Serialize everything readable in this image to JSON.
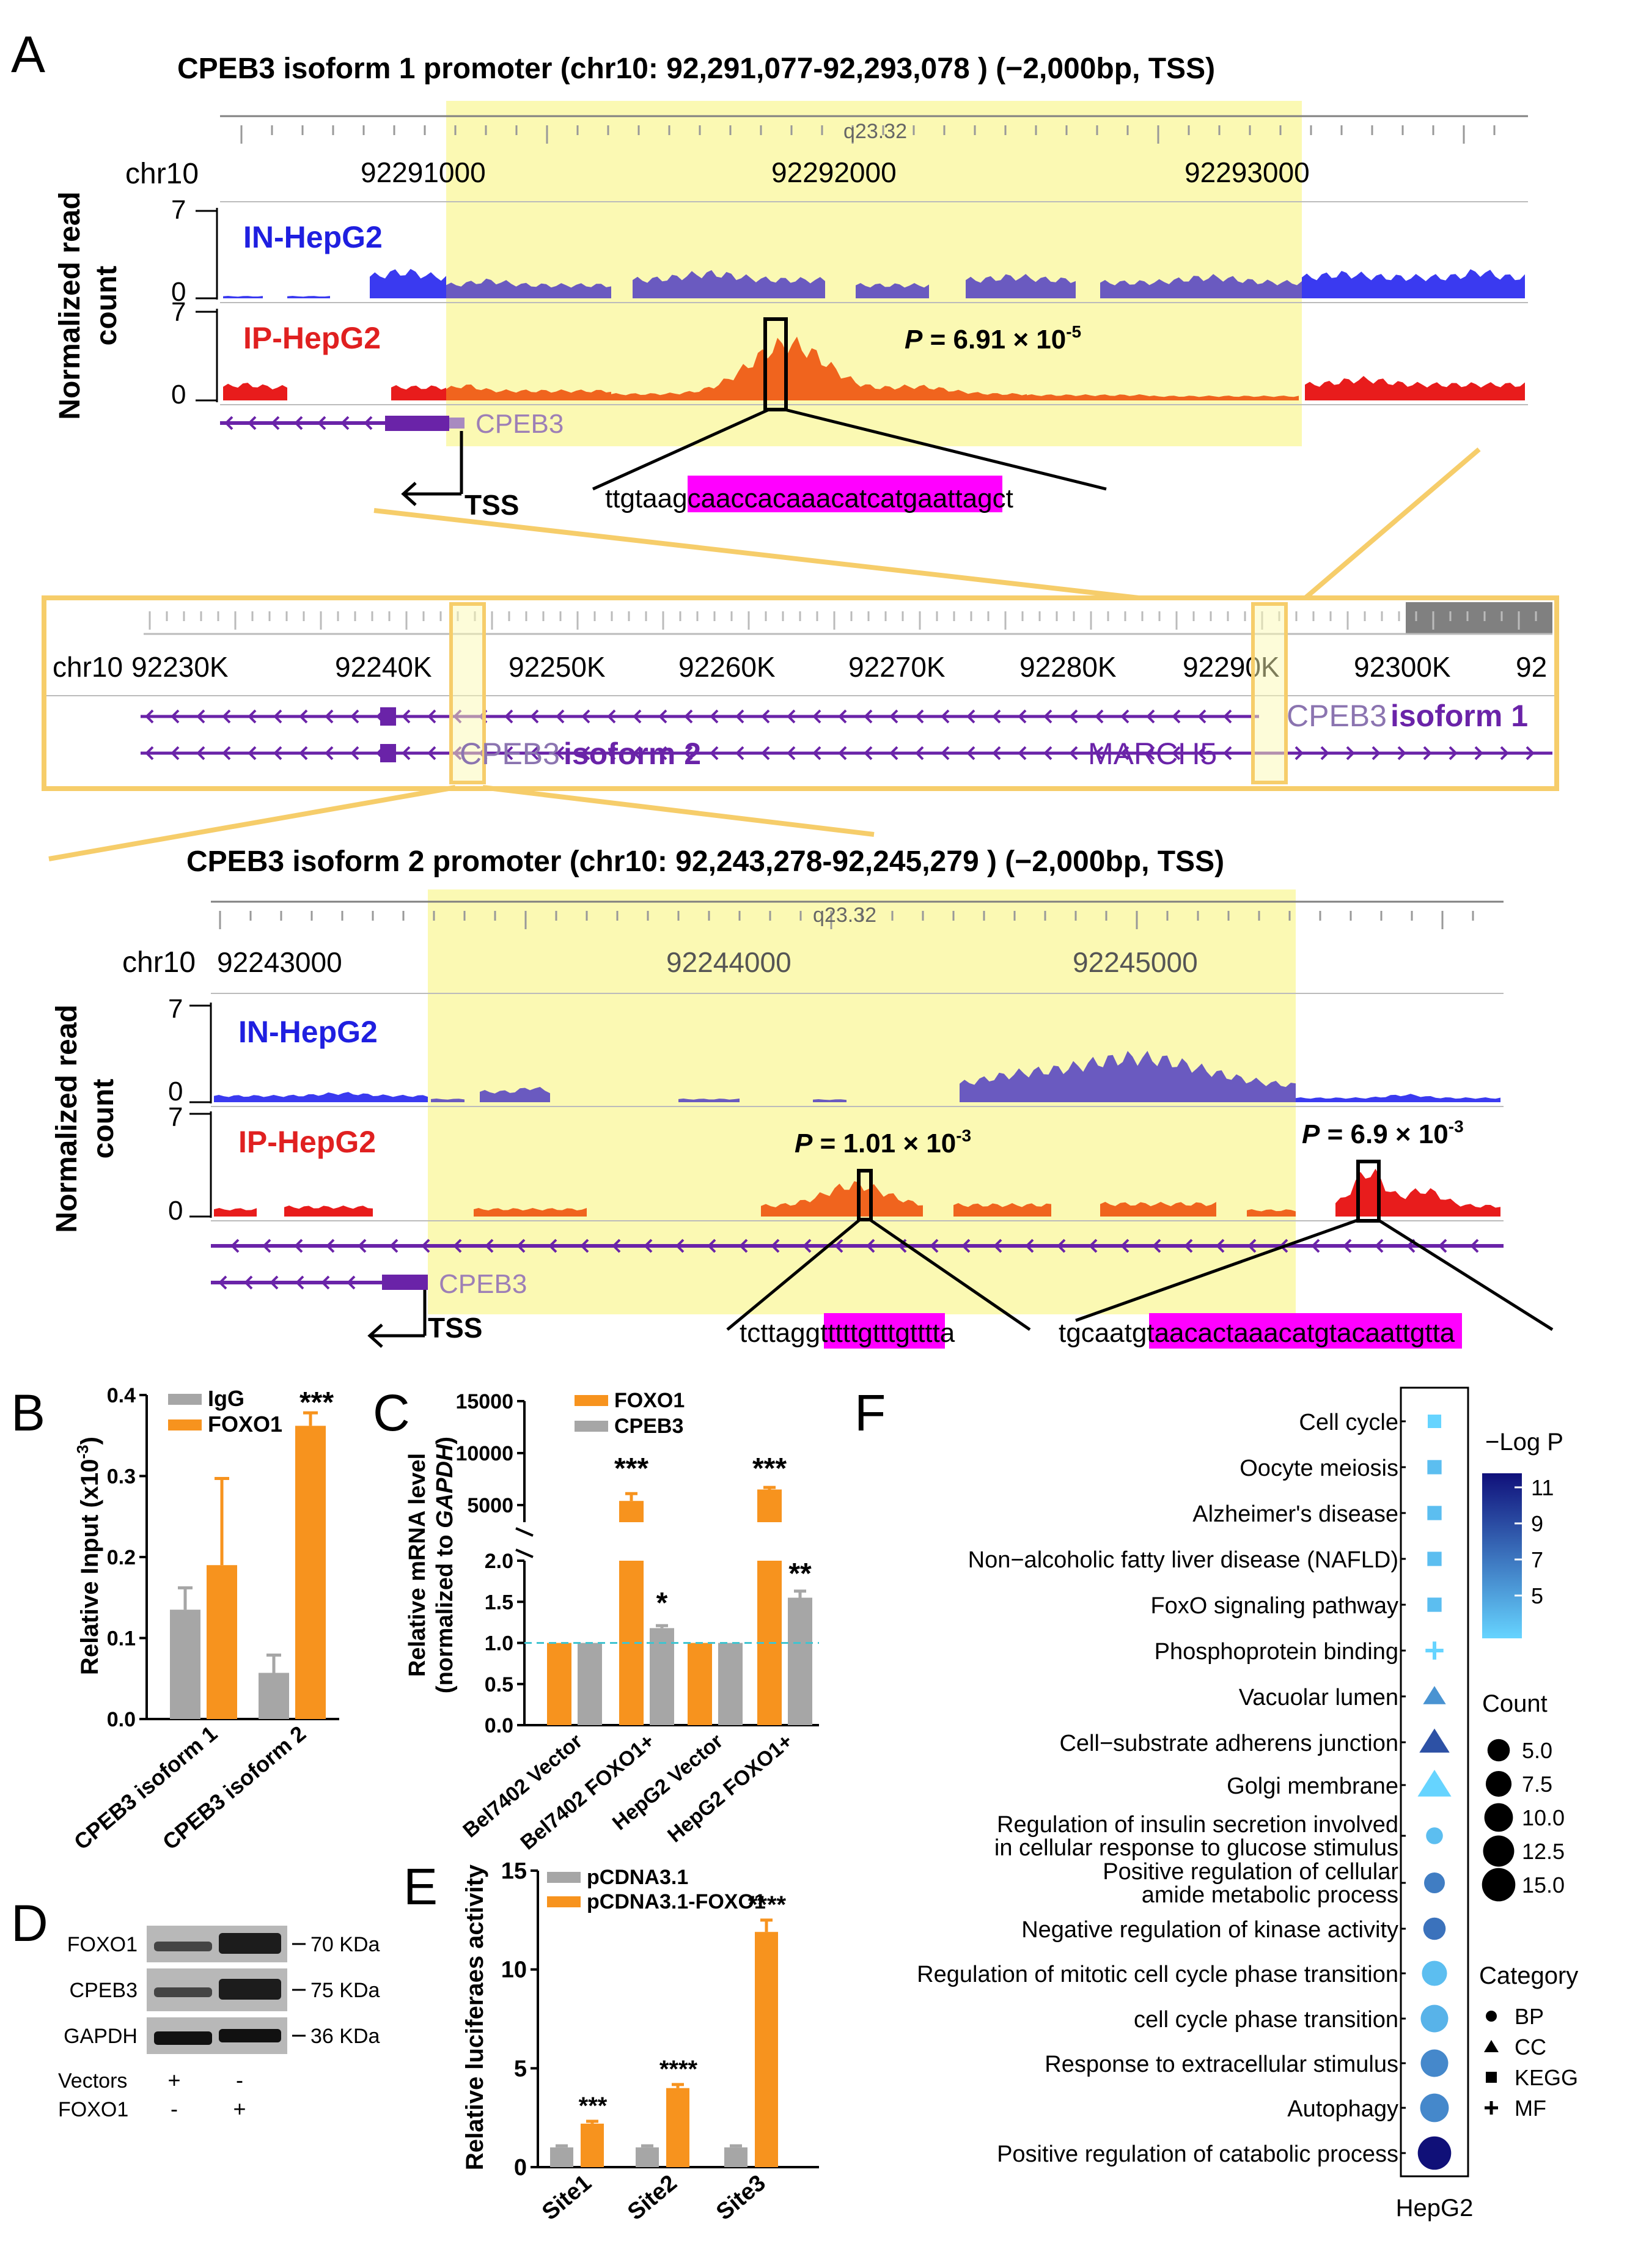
{
  "panel_labels": {
    "a": "A",
    "b": "B",
    "c": "C",
    "d": "D",
    "e": "E",
    "f": "F"
  },
  "panelA": {
    "top_title": "CPEB3 isoform 1 promoter (chr10: 92,291,077-92,293,078 ) (−2,000bp, TSS)",
    "bottom_title": "CPEB3 isoform 2 promoter (chr10: 92,243,278-92,245,279 ) (−2,000bp, TSS)",
    "band": "q23.32",
    "chrom": "chr10",
    "top_ticks": [
      "92291000",
      "92292000",
      "92293000"
    ],
    "bottom_ticks": [
      "92243000",
      "92244000",
      "92245000"
    ],
    "ylabel_1": "Normalized read",
    "ylabel_2": "count",
    "y_max": "7",
    "y_min": "0",
    "in_label": "IN-HepG2",
    "ip_label": "IP-HepG2",
    "gene": "CPEB3",
    "tss": "TSS",
    "p1": {
      "pre": "P",
      "mid": " = 6.91 × 10",
      "exp": "-5"
    },
    "p2": {
      "pre": "P",
      "mid": " = 1.01 × 10",
      "exp": "-3"
    },
    "p3": {
      "pre": "P",
      "mid": " = 6.9 × 10",
      "exp": "-3"
    },
    "seq1": {
      "a": "ttgtaa",
      "b": "gcaaccacaaacatcatgaa",
      "c": "ttagct"
    },
    "seq2": {
      "a": "tcttag",
      "b": "gtttttgttt",
      "c": "gtttta"
    },
    "seq3": {
      "a": "tgcaat",
      "b": "gtaacactaaacatgtacaa",
      "c": "ttgtta"
    },
    "overview": {
      "ticks": [
        "92230K",
        "92240K",
        "92250K",
        "92260K",
        "92270K",
        "92280K",
        "92290K",
        "92300K",
        "92"
      ],
      "iso1": "isoform 1",
      "iso2": "isoform 2",
      "march5": "MARCH5"
    }
  },
  "panelB": {
    "ylabel": "Relative Input (x10",
    "ylabel_exp": "-3",
    "ylabel_end": ")",
    "legend": [
      "IgG",
      "FOXO1"
    ],
    "significance": "***",
    "colors": {
      "IgG": "#a6a6a6",
      "FOXO1": "#f7931e"
    },
    "chart_data": {
      "type": "bar",
      "categories": [
        "CPEB3 isoform 1",
        "CPEB3 isoform 2"
      ],
      "series": [
        {
          "name": "IgG",
          "values": [
            0.135,
            0.057
          ],
          "errors": [
            0.027,
            0.022
          ]
        },
        {
          "name": "FOXO1",
          "values": [
            0.19,
            0.362
          ],
          "errors": [
            0.107,
            0.016
          ]
        }
      ],
      "ylim": [
        0,
        0.4
      ],
      "yticks": [
        "0.0",
        "0.1",
        "0.2",
        "0.3",
        "0.4"
      ]
    }
  },
  "panelC": {
    "ylabel_1": "Relative mRNA level",
    "ylabel_2a": "(normalized to ",
    "ylabel_2b": "GAPDH",
    "ylabel_2c": ")",
    "legend": [
      "FOXO1",
      "CPEB3"
    ],
    "chart_data": {
      "type": "bar",
      "categories": [
        "Bel7402 Vector",
        "Bel7402 FOXO1+",
        "HepG2 Vector",
        "HepG2 FOXO1+"
      ],
      "series": [
        {
          "name": "FOXO1",
          "values": [
            1.0,
            5400,
            1.0,
            6500
          ],
          "errors": [
            0,
            700,
            0,
            200
          ]
        },
        {
          "name": "CPEB3",
          "values": [
            1.0,
            1.18,
            1.0,
            1.55
          ],
          "errors": [
            0,
            0.03,
            0,
            0.08
          ]
        }
      ],
      "yticks_low": [
        "0.0",
        "0.5",
        "1.0",
        "1.5",
        "2.0"
      ],
      "yticks_high": [
        "5000",
        "10000",
        "15000"
      ],
      "significance": {
        "FOXO1": [
          "",
          "***",
          "",
          "***"
        ],
        "CPEB3": [
          "",
          "*",
          "",
          "**"
        ]
      },
      "reference_line": 1.0
    }
  },
  "panelD": {
    "rows": [
      "FOXO1",
      "CPEB3",
      "GAPDH"
    ],
    "sizes": [
      "70 KDa",
      "75 KDa",
      "36 KDa"
    ],
    "conditions": [
      {
        "name": "Vectors",
        "values": [
          "+",
          "-"
        ]
      },
      {
        "name": "FOXO1",
        "values": [
          "-",
          "+"
        ]
      }
    ]
  },
  "panelE": {
    "ylabel": "Relative luciferaes activity",
    "legend": [
      "pCDNA3.1",
      "pCDNA3.1-FOXO1"
    ],
    "chart_data": {
      "type": "bar",
      "categories": [
        "Site1",
        "Site2",
        "Site3"
      ],
      "series": [
        {
          "name": "pCDNA3.1",
          "values": [
            1.0,
            1.0,
            1.0
          ],
          "errors": [
            0.08,
            0.08,
            0.08
          ]
        },
        {
          "name": "pCDNA3.1-FOXO1",
          "values": [
            2.2,
            4.0,
            11.9
          ],
          "errors": [
            0.12,
            0.18,
            0.6
          ]
        }
      ],
      "ylim": [
        0,
        15
      ],
      "yticks": [
        "0",
        "5",
        "10",
        "15"
      ],
      "significance": [
        "***",
        "****",
        "****"
      ]
    }
  },
  "panelF": {
    "xlabel": "HepG2",
    "colorbar_title": "−Log P",
    "colorbar_ticks": [
      "11",
      "9",
      "7",
      "5"
    ],
    "count_title": "Count",
    "count_values": [
      "5.0",
      "7.5",
      "10.0",
      "12.5",
      "15.0"
    ],
    "category_title": "Category",
    "categories": [
      "BP",
      "CC",
      "KEGG",
      "MF"
    ],
    "chart_data": {
      "type": "scatter",
      "terms": [
        {
          "name": "Cell cycle",
          "count": 2.5,
          "logp": 3,
          "category": "KEGG"
        },
        {
          "name": "Oocyte meiosis",
          "count": 3,
          "logp": 4,
          "category": "KEGG"
        },
        {
          "name": "Alzheimer's disease",
          "count": 3,
          "logp": 4,
          "category": "KEGG"
        },
        {
          "name": "Non−alcoholic fatty liver disease (NAFLD)",
          "count": 3,
          "logp": 4,
          "category": "KEGG"
        },
        {
          "name": "FoxO signaling pathway",
          "count": 3,
          "logp": 4,
          "category": "KEGG"
        },
        {
          "name": "Phosphoprotein binding",
          "count": 2.5,
          "logp": 3,
          "category": "MF"
        },
        {
          "name": "Vacuolar lumen",
          "count": 4,
          "logp": 6,
          "category": "CC"
        },
        {
          "name": "Cell−substrate adherens junction",
          "count": 9,
          "logp": 9,
          "category": "CC"
        },
        {
          "name": "Golgi membrane",
          "count": 12,
          "logp": 3,
          "category": "CC"
        },
        {
          "name": "Regulation of insulin secretion involved\nin cellular response to glucose stimulus",
          "count": 2,
          "logp": 4,
          "category": "BP"
        },
        {
          "name": "Positive regulation of cellular\namide metabolic process",
          "count": 4,
          "logp": 7,
          "category": "BP"
        },
        {
          "name": "Negative regulation of kinase activity",
          "count": 5,
          "logp": 7.5,
          "category": "BP"
        },
        {
          "name": "Regulation of mitotic cell cycle phase transition",
          "count": 7,
          "logp": 4,
          "category": "BP"
        },
        {
          "name": "cell cycle phase transition",
          "count": 9,
          "logp": 4.5,
          "category": "BP"
        },
        {
          "name": "Response to extracellular stimulus",
          "count": 9,
          "logp": 6.5,
          "category": "BP"
        },
        {
          "name": "Autophagy",
          "count": 10,
          "logp": 6.5,
          "category": "BP"
        },
        {
          "name": "Positive regulation of catabolic process",
          "count": 15,
          "logp": 12,
          "category": "BP"
        }
      ]
    }
  }
}
